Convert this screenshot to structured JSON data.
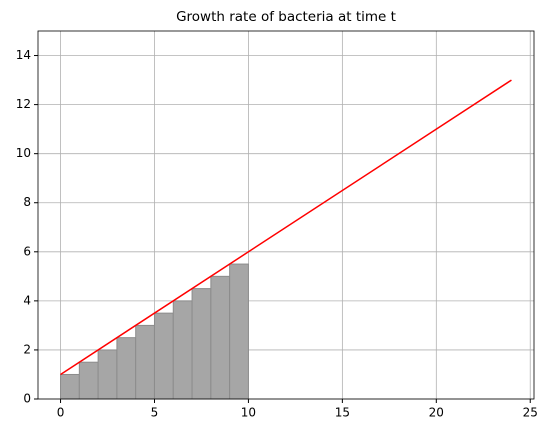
{
  "chart_data": {
    "type": "histogram",
    "title": "Growth rate of bacteria at time t",
    "bins": [
      0,
      1,
      2,
      3,
      4,
      5,
      6,
      7,
      8,
      9,
      10
    ],
    "values": [
      1,
      1.5,
      2,
      2.5,
      3,
      3.5,
      4,
      4.5,
      5,
      5.5
    ],
    "color": "#a6a6a6",
    "edgecolor": "#8c8c8c",
    "line": {
      "type": "line",
      "x": [
        0,
        24
      ],
      "values": [
        1,
        13
      ],
      "color": "#ff0000"
    },
    "xlim": [
      -1.2,
      25.2
    ],
    "xticks": [
      0,
      5,
      10,
      15,
      20,
      25
    ],
    "ylim": [
      0,
      15
    ],
    "yticks": [
      0,
      2,
      4,
      6,
      8,
      10,
      12,
      14
    ],
    "grid": true
  }
}
